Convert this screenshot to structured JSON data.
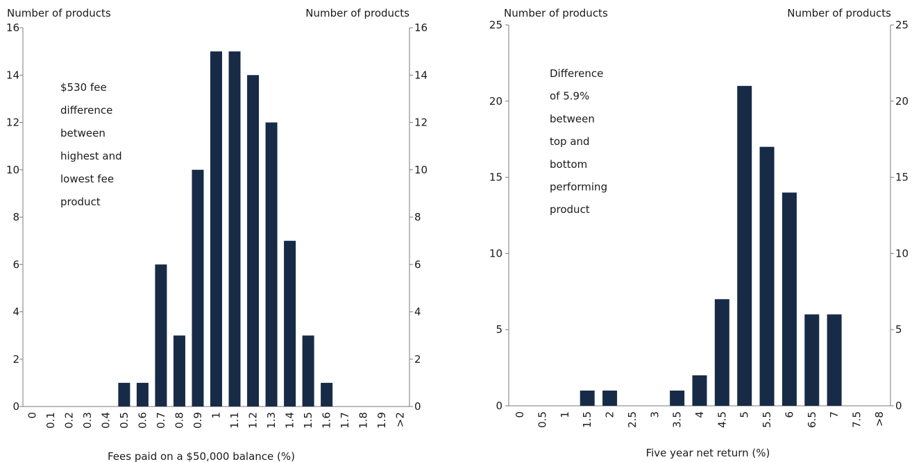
{
  "chart_data": [
    {
      "type": "bar",
      "y_axis_label_left": "Number of products",
      "y_axis_label_right": "Number of products",
      "xlabel": "Fees paid on a $50,000 balance (%)",
      "ylim": [
        0,
        16
      ],
      "yticks": [
        0,
        2,
        4,
        6,
        8,
        10,
        12,
        14,
        16
      ],
      "categories": [
        "0",
        "0.1",
        "0.2",
        "0.3",
        "0.4",
        "0.5",
        "0.6",
        "0.7",
        "0.8",
        "0.9",
        "1",
        "1.1",
        "1.2",
        "1.3",
        "1.4",
        "1.5",
        "1.6",
        "1.7",
        "1.8",
        "1.9",
        ">2"
      ],
      "values": [
        0,
        0,
        0,
        0,
        0,
        1,
        1,
        6,
        3,
        10,
        15,
        15,
        14,
        12,
        7,
        3,
        1,
        0,
        0,
        0,
        0
      ],
      "annotation": [
        "$530 fee",
        "difference",
        "between",
        "highest and",
        "lowest fee",
        "product"
      ],
      "bar_color": "#172b47"
    },
    {
      "type": "bar",
      "y_axis_label_left": "Number of products",
      "y_axis_label_right": "Number of products",
      "xlabel": "Five year net return (%)",
      "ylim": [
        0,
        25
      ],
      "yticks": [
        0,
        5,
        10,
        15,
        20,
        25
      ],
      "categories": [
        "0",
        "0.5",
        "1",
        "1.5",
        "2",
        "2.5",
        "3",
        "3.5",
        "4",
        "4.5",
        "5",
        "5.5",
        "6",
        "6.5",
        "7",
        "7.5",
        ">8"
      ],
      "values": [
        0,
        0,
        0,
        1,
        1,
        0,
        0,
        1,
        2,
        7,
        21,
        17,
        14,
        6,
        6,
        0,
        0
      ],
      "annotation": [
        "Difference",
        "of 5.9%",
        "between",
        "top and",
        "bottom",
        "performing",
        "product"
      ],
      "bar_color": "#172b47"
    }
  ]
}
